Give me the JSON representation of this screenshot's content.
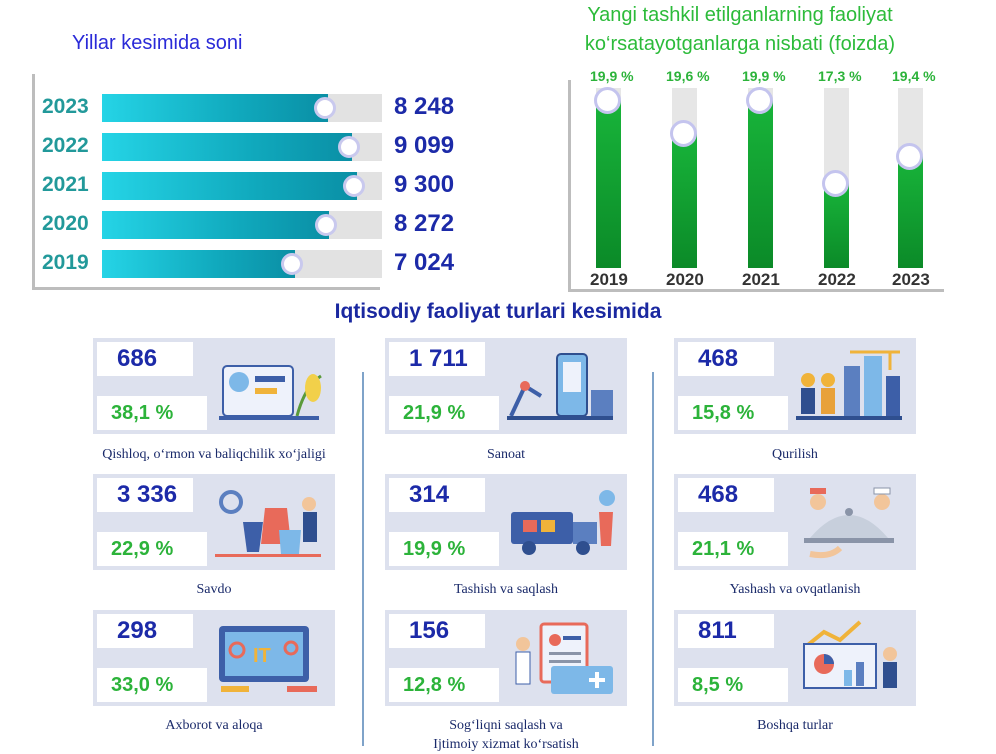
{
  "left_chart": {
    "title": "Yillar kesimida soni",
    "max_value": 10200,
    "rows": [
      {
        "year": "2023",
        "value": 8248,
        "value_label": "8 248"
      },
      {
        "year": "2022",
        "value": 9099,
        "value_label": "9 099"
      },
      {
        "year": "2021",
        "value": 9300,
        "value_label": "9 300"
      },
      {
        "year": "2020",
        "value": 8272,
        "value_label": "8 272"
      },
      {
        "year": "2019",
        "value": 7024,
        "value_label": "7 024"
      }
    ]
  },
  "right_chart": {
    "title": "Yangi tashkil etilganlarning faoliyat ko‘rsatayotganlarga nisbati (foizda)",
    "ylim": [
      0,
      20
    ],
    "columns": [
      {
        "year": "2019",
        "value": 19.9,
        "value_label": "19,9 %"
      },
      {
        "year": "2020",
        "value": 19.6,
        "value_label": "19,6 %"
      },
      {
        "year": "2021",
        "value": 19.9,
        "value_label": "19,9 %"
      },
      {
        "year": "2022",
        "value": 17.3,
        "value_label": "17,3 %"
      },
      {
        "year": "2023",
        "value": 19.4,
        "value_label": "19,4 %"
      }
    ]
  },
  "chart_data": [
    {
      "type": "bar",
      "orientation": "horizontal",
      "title": "Yillar kesimida soni",
      "categories": [
        "2023",
        "2022",
        "2021",
        "2020",
        "2019"
      ],
      "values": [
        8248,
        9099,
        9300,
        8272,
        7024
      ]
    },
    {
      "type": "bar",
      "title": "Yangi tashkil etilganlarning faoliyat ko‘rsatayotganlarga nisbati (foizda)",
      "categories": [
        "2019",
        "2020",
        "2021",
        "2022",
        "2023"
      ],
      "values": [
        19.9,
        19.6,
        19.9,
        17.3,
        19.4
      ]
    }
  ],
  "sectors_title": "Iqtisodiy faoliyat turlari kesimida",
  "sectors": [
    {
      "count": "686",
      "pct": "38,1 %",
      "label": "Qishloq, o‘rmon va baliqchilik xo‘jaligi",
      "icon": "agriculture-illustration"
    },
    {
      "count": "1 711",
      "pct": "21,9 %",
      "label": "Sanoat",
      "icon": "industry-illustration"
    },
    {
      "count": "468",
      "pct": "15,8 %",
      "label": "Qurilish",
      "icon": "construction-illustration"
    },
    {
      "count": "3 336",
      "pct": "22,9 %",
      "label": "Savdo",
      "icon": "shopping-illustration"
    },
    {
      "count": "314",
      "pct": "19,9 %",
      "label": "Tashish va saqlash",
      "icon": "logistics-illustration"
    },
    {
      "count": "468",
      "pct": "21,1 %",
      "label": "Yashash va ovqatlanish",
      "icon": "hospitality-illustration"
    },
    {
      "count": "298",
      "pct": "33,0 %",
      "label": "Axborot va aloqa",
      "icon": "it-illustration"
    },
    {
      "count": "156",
      "pct": "12,8 %",
      "label": "Sog‘liqni saqlash va",
      "label2": "Ijtimoiy xizmat ko‘rsatish",
      "icon": "healthcare-illustration"
    },
    {
      "count": "811",
      "pct": "8,5 %",
      "label": "Boshqa turlar",
      "icon": "analytics-illustration"
    }
  ]
}
